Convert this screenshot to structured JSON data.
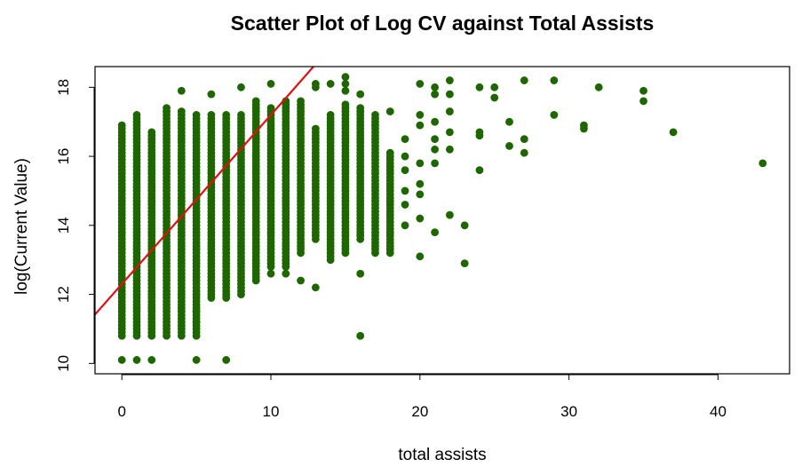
{
  "chart_data": {
    "type": "scatter",
    "title": "Scatter Plot of Log CV against Total Assists",
    "xlabel": "total assists",
    "ylabel": "log(Current Value)",
    "xlim": [
      -1.8,
      44.8
    ],
    "ylim": [
      9.7,
      18.6
    ],
    "xticks": [
      "0",
      "10",
      "20",
      "30",
      "40"
    ],
    "yticks": [
      "10",
      "12",
      "14",
      "16",
      "18"
    ],
    "point_color": "#1e6600",
    "line_color": "#e01010",
    "grid": false,
    "legend": "none",
    "fit_line": {
      "intercept": 12.3,
      "slope": 0.49
    },
    "columns": [
      {
        "x": 0,
        "ymin": 10.8,
        "ymax": 16.9,
        "extra": [
          10.1
        ]
      },
      {
        "x": 1,
        "ymin": 10.8,
        "ymax": 17.2,
        "extra": [
          10.1
        ]
      },
      {
        "x": 2,
        "ymin": 10.8,
        "ymax": 16.7,
        "extra": [
          10.1
        ]
      },
      {
        "x": 3,
        "ymin": 10.8,
        "ymax": 17.4,
        "extra": []
      },
      {
        "x": 4,
        "ymin": 10.8,
        "ymax": 17.3,
        "extra": [
          17.9
        ]
      },
      {
        "x": 5,
        "ymin": 10.8,
        "ymax": 17.2,
        "extra": [
          10.1,
          11.2,
          11.5
        ]
      },
      {
        "x": 6,
        "ymin": 11.9,
        "ymax": 17.2,
        "extra": [
          17.8
        ]
      },
      {
        "x": 7,
        "ymin": 11.9,
        "ymax": 17.2,
        "extra": [
          10.1
        ]
      },
      {
        "x": 8,
        "ymin": 12.0,
        "ymax": 17.2,
        "extra": [
          18.0
        ]
      },
      {
        "x": 9,
        "ymin": 12.4,
        "ymax": 17.6,
        "extra": []
      },
      {
        "x": 10,
        "ymin": 12.8,
        "ymax": 17.4,
        "extra": [
          18.1,
          12.6
        ]
      },
      {
        "x": 11,
        "ymin": 12.8,
        "ymax": 17.6,
        "extra": [
          12.6
        ]
      },
      {
        "x": 12,
        "ymin": 13.2,
        "ymax": 17.6,
        "extra": [
          12.4
        ]
      },
      {
        "x": 13,
        "ymin": 13.6,
        "ymax": 16.8,
        "extra": [
          12.2,
          18.1,
          18.0
        ]
      },
      {
        "x": 14,
        "ymin": 13.0,
        "ymax": 17.2,
        "extra": [
          18.1
        ]
      },
      {
        "x": 15,
        "ymin": 13.2,
        "ymax": 17.5,
        "extra": [
          18.3,
          18.1,
          17.9
        ]
      },
      {
        "x": 16,
        "ymin": 13.6,
        "ymax": 17.4,
        "extra": [
          10.8,
          12.6,
          17.8
        ]
      },
      {
        "x": 17,
        "ymin": 13.2,
        "ymax": 17.2,
        "extra": []
      },
      {
        "x": 18,
        "ymin": 13.2,
        "ymax": 16.1,
        "extra": [
          17.3
        ]
      }
    ],
    "points": [
      [
        19,
        16.5
      ],
      [
        19,
        16.0
      ],
      [
        19,
        15.6
      ],
      [
        19,
        15.0
      ],
      [
        19,
        14.6
      ],
      [
        19,
        14.0
      ],
      [
        20,
        18.1
      ],
      [
        20,
        17.2
      ],
      [
        20,
        16.9
      ],
      [
        20,
        15.8
      ],
      [
        20,
        15.2
      ],
      [
        20,
        14.9
      ],
      [
        20,
        14.2
      ],
      [
        20,
        13.1
      ],
      [
        21,
        18.0
      ],
      [
        21,
        17.8
      ],
      [
        21,
        17.0
      ],
      [
        21,
        16.5
      ],
      [
        21,
        16.2
      ],
      [
        21,
        15.8
      ],
      [
        21,
        13.8
      ],
      [
        22,
        18.2
      ],
      [
        22,
        17.8
      ],
      [
        22,
        17.3
      ],
      [
        22,
        16.7
      ],
      [
        22,
        16.2
      ],
      [
        22,
        14.3
      ],
      [
        23,
        14.0
      ],
      [
        23,
        12.9
      ],
      [
        24,
        18.0
      ],
      [
        24,
        16.7
      ],
      [
        24,
        16.6
      ],
      [
        24,
        15.6
      ],
      [
        25,
        18.0
      ],
      [
        25,
        17.7
      ],
      [
        26,
        17.0
      ],
      [
        26,
        16.3
      ],
      [
        27,
        18.2
      ],
      [
        27,
        16.5
      ],
      [
        27,
        16.1
      ],
      [
        29,
        18.2
      ],
      [
        29,
        17.2
      ],
      [
        31,
        16.9
      ],
      [
        31,
        16.8
      ],
      [
        32,
        18.0
      ],
      [
        35,
        17.9
      ],
      [
        35,
        17.6
      ],
      [
        37,
        16.7
      ],
      [
        43,
        15.8
      ]
    ]
  }
}
